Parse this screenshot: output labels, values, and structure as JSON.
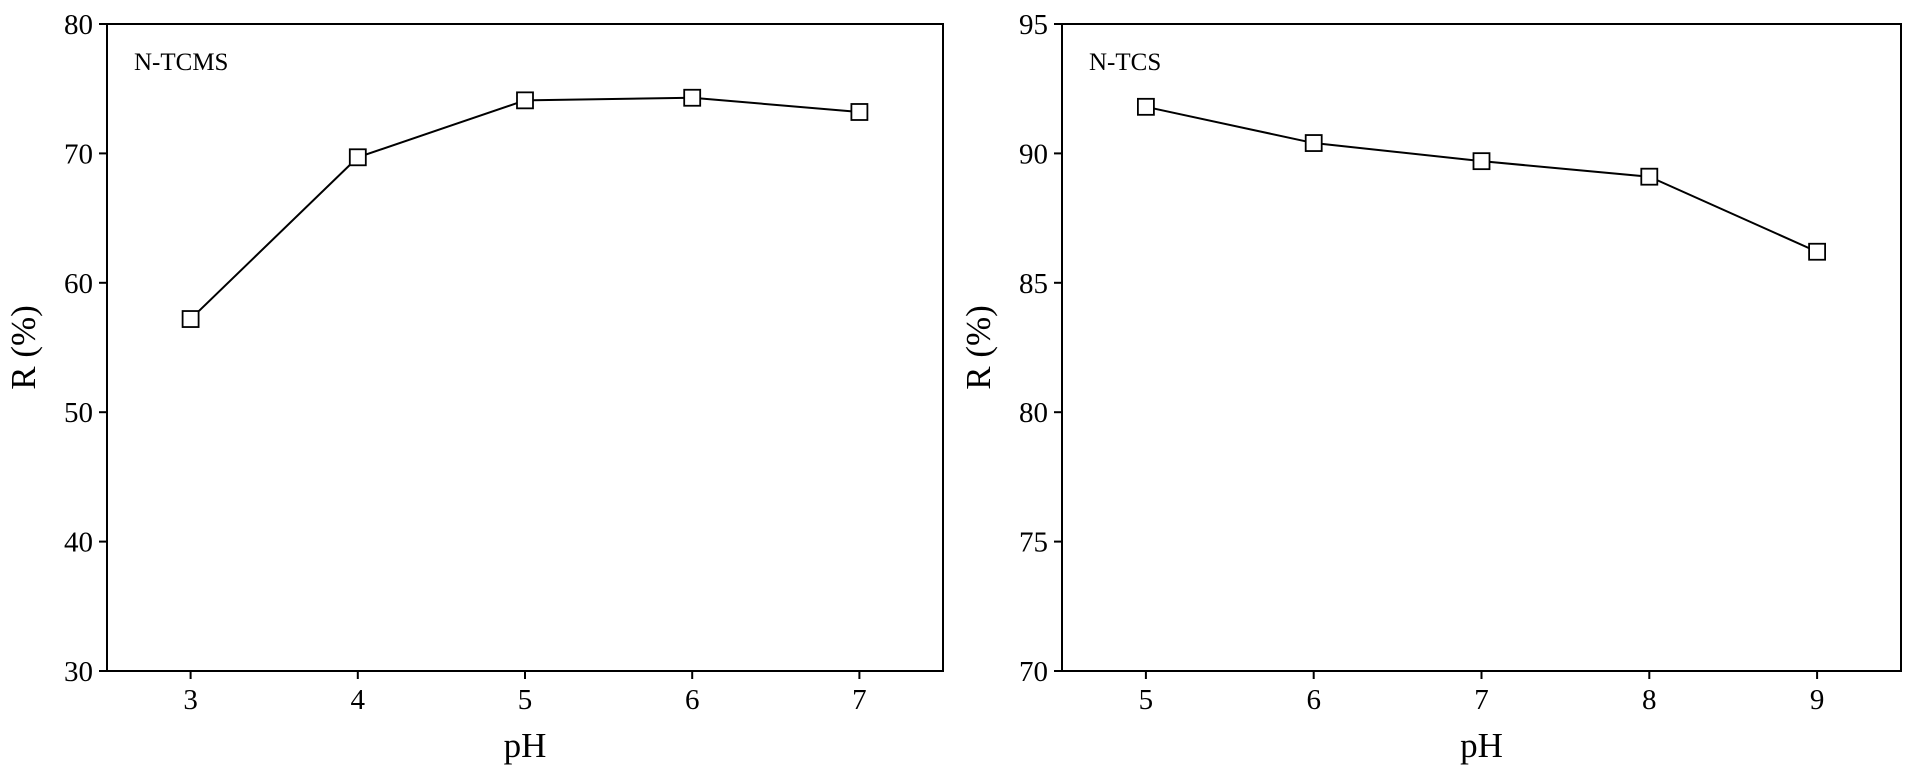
{
  "chart_data": [
    {
      "type": "line",
      "annotation": "N-TCMS",
      "xlabel": "pH",
      "ylabel": "R (%)",
      "x": [
        3,
        4,
        5,
        6,
        7
      ],
      "series": [
        {
          "name": "N-TCMS",
          "color": "#000000",
          "values": [
            57.2,
            69.7,
            74.1,
            74.3,
            73.2
          ]
        }
      ],
      "xlim": [
        2.5,
        7.5
      ],
      "xticks": [
        3,
        4,
        5,
        6,
        7
      ],
      "ylim": [
        30,
        80
      ],
      "yticks": [
        30,
        40,
        50,
        60,
        70,
        80
      ]
    },
    {
      "type": "line",
      "annotation": "N-TCS",
      "xlabel": "pH",
      "ylabel": "R (%)",
      "x": [
        5,
        6,
        7,
        8,
        9
      ],
      "series": [
        {
          "name": "N-TCS",
          "color": "#000000",
          "values": [
            91.8,
            90.4,
            89.7,
            89.1,
            86.2
          ]
        }
      ],
      "xlim": [
        4.5,
        9.5
      ],
      "xticks": [
        5,
        6,
        7,
        8,
        9
      ],
      "ylim": [
        70,
        95
      ],
      "yticks": [
        70,
        75,
        80,
        85,
        90,
        95
      ]
    }
  ]
}
